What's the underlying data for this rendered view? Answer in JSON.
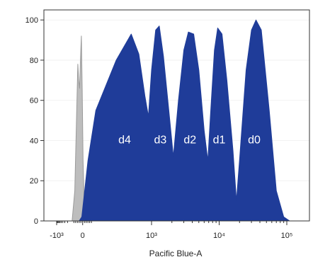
{
  "chart_data": {
    "type": "area",
    "title": "",
    "xlabel": "Pacific Blue-A",
    "ylabel": "",
    "x_scale": "biexponential",
    "ylim": [
      0,
      105
    ],
    "y_ticks": [
      {
        "value": 0,
        "label": "0"
      },
      {
        "value": 20,
        "label": "20"
      },
      {
        "value": 40,
        "label": "40"
      },
      {
        "value": 60,
        "label": "60"
      },
      {
        "value": 80,
        "label": "80"
      },
      {
        "value": 100,
        "label": "100"
      }
    ],
    "x_ticks": [
      {
        "value": -1000,
        "label": "-10³"
      },
      {
        "value": 0,
        "label": "0"
      },
      {
        "value": 1000,
        "label": "10³"
      },
      {
        "value": 10000,
        "label": "10⁴"
      },
      {
        "value": 100000,
        "label": "10⁵"
      }
    ],
    "series": [
      {
        "color": "#bdbdbd",
        "points": [
          [
            -120,
            0
          ],
          [
            -90,
            15
          ],
          [
            -70,
            50
          ],
          [
            -55,
            78
          ],
          [
            -45,
            70
          ],
          [
            -35,
            66
          ],
          [
            -25,
            80
          ],
          [
            -15,
            92
          ],
          [
            -5,
            65
          ],
          [
            5,
            30
          ],
          [
            20,
            5
          ],
          [
            35,
            0
          ]
        ]
      },
      {
        "color": "#1f3c99",
        "points": [
          [
            -40,
            0
          ],
          [
            -10,
            2
          ],
          [
            10,
            10
          ],
          [
            60,
            30
          ],
          [
            150,
            55
          ],
          [
            300,
            80
          ],
          [
            500,
            93
          ],
          [
            650,
            83
          ],
          [
            800,
            62
          ],
          [
            900,
            52
          ],
          [
            1000,
            75
          ],
          [
            1150,
            95
          ],
          [
            1300,
            97
          ],
          [
            1500,
            82
          ],
          [
            1800,
            55
          ],
          [
            2100,
            32
          ],
          [
            2500,
            60
          ],
          [
            3000,
            85
          ],
          [
            3500,
            94
          ],
          [
            4200,
            93
          ],
          [
            5000,
            75
          ],
          [
            6000,
            45
          ],
          [
            6800,
            30
          ],
          [
            7500,
            55
          ],
          [
            8500,
            85
          ],
          [
            9500,
            96
          ],
          [
            11000,
            93
          ],
          [
            13000,
            70
          ],
          [
            16000,
            35
          ],
          [
            18000,
            10
          ],
          [
            20000,
            30
          ],
          [
            25000,
            75
          ],
          [
            30000,
            95
          ],
          [
            35000,
            100
          ],
          [
            42000,
            95
          ],
          [
            55000,
            55
          ],
          [
            70000,
            15
          ],
          [
            90000,
            2
          ],
          [
            110000,
            0
          ]
        ]
      }
    ],
    "annotations": [
      {
        "text": "d4",
        "x": 400,
        "y": 40
      },
      {
        "text": "d3",
        "x": 1350,
        "y": 40
      },
      {
        "text": "d2",
        "x": 3700,
        "y": 40
      },
      {
        "text": "d1",
        "x": 10000,
        "y": 40
      },
      {
        "text": "d0",
        "x": 33000,
        "y": 40
      }
    ],
    "colors": {
      "background": "#ffffff",
      "frame": "#333333"
    }
  }
}
